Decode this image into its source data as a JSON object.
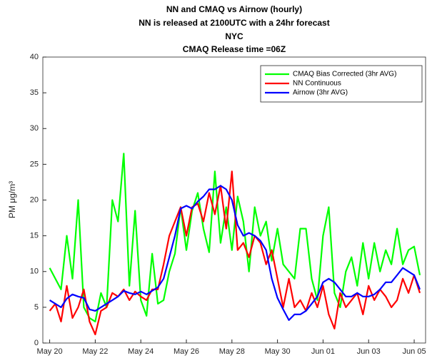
{
  "chart_data": {
    "type": "line",
    "title": [
      "NN and CMAQ vs Airnow (hourly)",
      "NN is released at 2100UTC with a 24hr forecast",
      "NYC",
      "CMAQ Release time =06Z"
    ],
    "ylabel": "PM μg/m³",
    "x": [
      0,
      0.25,
      0.5,
      0.75,
      1,
      1.25,
      1.5,
      1.75,
      2,
      2.25,
      2.5,
      2.75,
      3,
      3.25,
      3.5,
      3.75,
      4,
      4.25,
      4.5,
      4.75,
      5,
      5.25,
      5.5,
      5.75,
      6,
      6.25,
      6.5,
      6.75,
      7,
      7.25,
      7.5,
      7.75,
      8,
      8.25,
      8.5,
      8.75,
      9,
      9.25,
      9.5,
      9.75,
      10,
      10.25,
      10.5,
      10.75,
      11,
      11.25,
      11.5,
      11.75,
      12,
      12.25,
      12.5,
      12.75,
      13,
      13.25,
      13.5,
      13.75,
      14,
      14.25,
      14.5,
      14.75,
      15,
      15.25,
      15.5,
      15.75,
      16,
      16.25
    ],
    "series": [
      {
        "name": "CMAQ Bias Corrected (3hr AVG)",
        "color": "#00ff00",
        "values": [
          10.5,
          9,
          7.5,
          15,
          9,
          20,
          5,
          3.5,
          3,
          7,
          5,
          20,
          17,
          26.5,
          8,
          18.5,
          6,
          3.8,
          12.5,
          5.5,
          6,
          10,
          12.5,
          19,
          13,
          18.5,
          21,
          16,
          12.7,
          24,
          14,
          19,
          13,
          20.5,
          17,
          10,
          19,
          15,
          17,
          11.5,
          16,
          11,
          10,
          9,
          16,
          16,
          9,
          6,
          15,
          19,
          7,
          5,
          10,
          12,
          8,
          14,
          9,
          14,
          10,
          13,
          11,
          16,
          11,
          13,
          13.5,
          9.5
        ]
      },
      {
        "name": "NN Continuous",
        "color": "#ff0000",
        "values": [
          4.5,
          5.5,
          3,
          8,
          3.5,
          5,
          7.5,
          3,
          1.2,
          4.5,
          5,
          7,
          6.5,
          7.5,
          6,
          7.2,
          6.5,
          6,
          7.5,
          7.5,
          11,
          15,
          17,
          19,
          15,
          19,
          19.5,
          17,
          21,
          18,
          22,
          16,
          24,
          13,
          14,
          12,
          15,
          14,
          11,
          13,
          9,
          5,
          9,
          5,
          6,
          4.5,
          7,
          5,
          8,
          4,
          2,
          7,
          5,
          6,
          7,
          4,
          8,
          6,
          7.5,
          6.5,
          5,
          6,
          9,
          7,
          9.5,
          7
        ]
      },
      {
        "name": "Airnow (3hr AVG)",
        "color": "#0000ff",
        "values": [
          6,
          5.5,
          5,
          6.2,
          6.8,
          6.5,
          6.3,
          4.7,
          4.5,
          5,
          5.5,
          6,
          6.5,
          7.3,
          7,
          6.8,
          7.2,
          6.8,
          7.3,
          7.8,
          9,
          12,
          15,
          18.8,
          19.2,
          18.8,
          19.8,
          20.5,
          21.5,
          21.5,
          22,
          21.5,
          20,
          16.5,
          15,
          15.4,
          15,
          14.3,
          13,
          9,
          6.3,
          4.7,
          3.2,
          4,
          4,
          4.5,
          5.5,
          6.5,
          8.5,
          9,
          8.5,
          7.5,
          6.5,
          6.5,
          7,
          6.5,
          6.5,
          6.8,
          7.5,
          8.5,
          8.5,
          9.5,
          10.5,
          10,
          9.5,
          7.5
        ]
      }
    ],
    "xlim": [
      -0.3,
      16.5
    ],
    "xticks": [
      {
        "value": 0,
        "label": "May 20"
      },
      {
        "value": 2,
        "label": "May 22"
      },
      {
        "value": 4,
        "label": "May 24"
      },
      {
        "value": 6,
        "label": "May 26"
      },
      {
        "value": 8,
        "label": "May 28"
      },
      {
        "value": 10,
        "label": "May 30"
      },
      {
        "value": 12,
        "label": "Jun 01"
      },
      {
        "value": 14,
        "label": "Jun 03"
      },
      {
        "value": 16,
        "label": "Jun 05"
      }
    ],
    "ylim": [
      0,
      40
    ],
    "yticks": [
      0,
      5,
      10,
      15,
      20,
      25,
      30,
      35,
      40
    ],
    "grid": false,
    "legend": "northeast"
  }
}
